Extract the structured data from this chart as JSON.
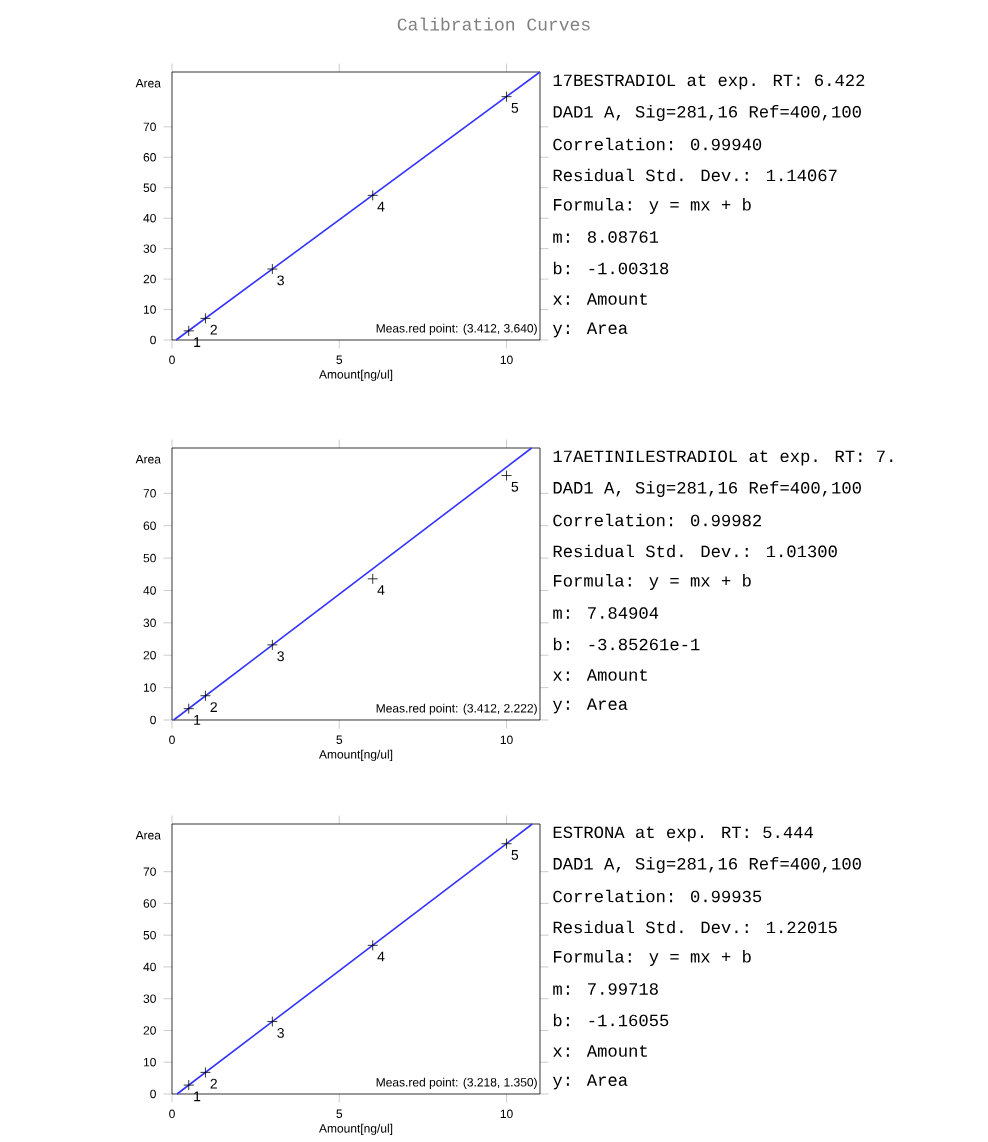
{
  "chart_data": [
    {
      "type": "scatter",
      "title": "Calibration Curves",
      "xlabel": "Amount[ng/ul]",
      "ylabel": "Area",
      "xlim": [
        0,
        11
      ],
      "ylim": [
        0,
        88
      ],
      "xticks": [
        0,
        5,
        10
      ],
      "yticks": [
        0,
        10,
        20,
        30,
        40,
        50,
        60,
        70
      ],
      "series": [
        {
          "color": "#000000",
          "marker": "cross",
          "x": [
            0.5,
            1,
            3,
            6,
            10
          ],
          "values": [
            3.0,
            7.1,
            23.3,
            47.5,
            79.9
          ]
        },
        {
          "type": "line",
          "color": "#3333ff",
          "x": [
            0.12,
            11
          ],
          "values": [
            0,
            88
          ]
        }
      ],
      "annotations": [
        "Meas.red point: (3.412, 3.640)",
        "17BESTRADIOL at exp. RT: 6.422",
        "DAD1 A, Sig=281,16 Ref=400,100",
        "Correlation: 0.99940",
        "Residual Std. Dev.: 1.14067",
        "Formula: y = mx + b",
        "m: 8.08761",
        "b: -1.00318",
        "x: Amount",
        "y: Area",
        {
          "text": "1",
          "x": 0.5,
          "y": 3.0
        },
        {
          "text": "2",
          "x": 1,
          "y": 7.1
        },
        {
          "text": "3",
          "x": 3,
          "y": 23.3
        },
        {
          "text": "4",
          "x": 6,
          "y": 47.5
        },
        {
          "text": "5",
          "x": 10,
          "y": 79.9
        }
      ]
    },
    {
      "type": "scatter",
      "xlabel": "Amount[ng/ul]",
      "ylabel": "Area",
      "xlim": [
        0,
        11
      ],
      "ylim": [
        0,
        84
      ],
      "xticks": [
        0,
        5,
        10
      ],
      "yticks": [
        0,
        10,
        20,
        30,
        40,
        50,
        60,
        70
      ],
      "series": [
        {
          "color": "#000000",
          "marker": "cross",
          "x": [
            0.5,
            1,
            3,
            6,
            10
          ],
          "values": [
            3.5,
            7.5,
            23.2,
            43.6,
            75.5
          ]
        },
        {
          "type": "line",
          "color": "#3333ff",
          "x": [
            0.05,
            10.75
          ],
          "values": [
            0,
            84
          ]
        }
      ],
      "annotations": [
        "Meas.red point: (3.412, 2.222)",
        "17AETINILESTRADIOL at exp. RT: 7.",
        "DAD1 A, Sig=281,16 Ref=400,100",
        "Correlation: 0.99982",
        "Residual Std. Dev.: 1.01300",
        "Formula: y = mx + b",
        "m: 7.84904",
        "b: -3.85261e-1",
        "x: Amount",
        "y: Area",
        {
          "text": "1",
          "x": 0.5,
          "y": 3.5
        },
        {
          "text": "2",
          "x": 1,
          "y": 7.5
        },
        {
          "text": "3",
          "x": 3,
          "y": 23.2
        },
        {
          "text": "4",
          "x": 6,
          "y": 43.6
        },
        {
          "text": "5",
          "x": 10,
          "y": 75.5
        }
      ]
    },
    {
      "type": "scatter",
      "xlabel": "Amount[ng/ul]",
      "ylabel": "Area",
      "xlim": [
        0,
        11
      ],
      "ylim": [
        0,
        85
      ],
      "xticks": [
        0,
        5,
        10
      ],
      "yticks": [
        0,
        10,
        20,
        30,
        40,
        50,
        60,
        70
      ],
      "series": [
        {
          "color": "#000000",
          "marker": "cross",
          "x": [
            0.5,
            1,
            3,
            6,
            10
          ],
          "values": [
            2.8,
            6.8,
            22.8,
            46.8,
            78.8
          ]
        },
        {
          "type": "line",
          "color": "#3333ff",
          "x": [
            0.15,
            10.77
          ],
          "values": [
            0,
            85
          ]
        }
      ],
      "annotations": [
        "Meas.red point: (3.218, 1.350)",
        "ESTRONA at exp. RT: 5.444",
        "DAD1 A, Sig=281,16 Ref=400,100",
        "Correlation: 0.99935",
        "Residual Std. Dev.: 1.22015",
        "Formula: y = mx + b",
        "m: 7.99718",
        "b: -1.16055",
        "x: Amount",
        "y: Area",
        {
          "text": "1",
          "x": 0.5,
          "y": 2.8
        },
        {
          "text": "2",
          "x": 1,
          "y": 6.8
        },
        {
          "text": "3",
          "x": 3,
          "y": 22.8
        },
        {
          "text": "4",
          "x": 6,
          "y": 46.8
        },
        {
          "text": "5",
          "x": 10,
          "y": 78.8
        }
      ]
    }
  ]
}
